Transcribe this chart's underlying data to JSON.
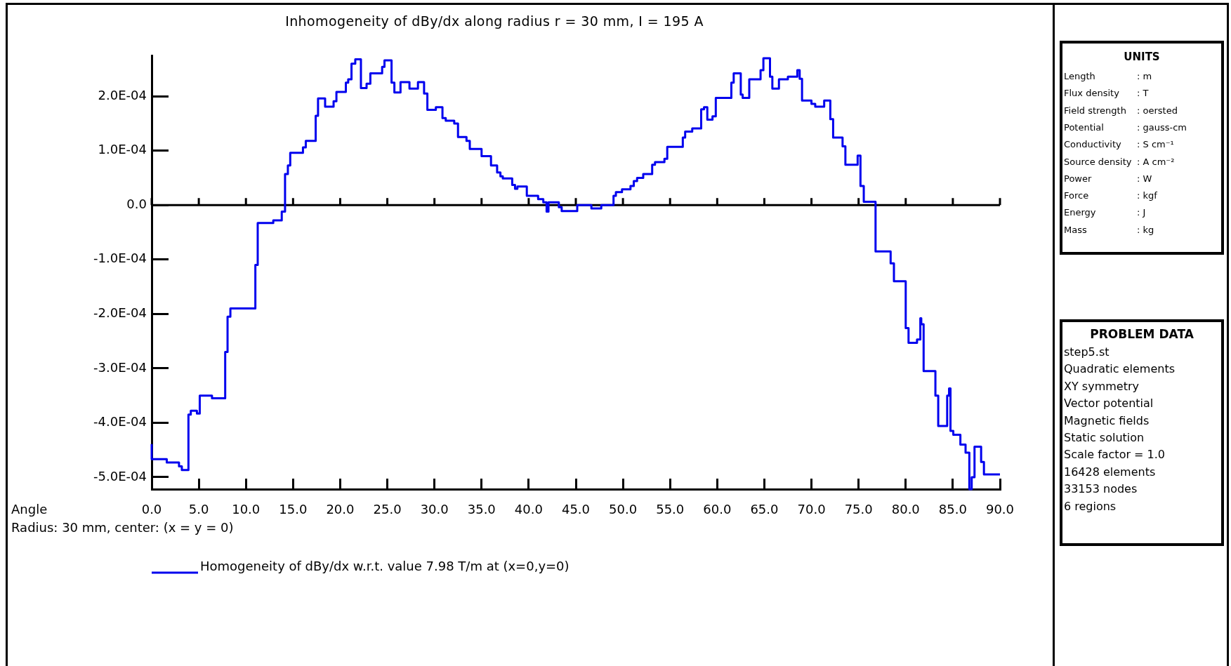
{
  "chart_data": [
    {
      "type": "step",
      "title": "Inhomogeneity of dBy/dx along radius r = 30 mm, I = 195 A",
      "xlabel": "Angle",
      "annotations": [
        "Radius: 30 mm, center: (x = y = 0)"
      ],
      "x": [
        0,
        0,
        1.6,
        2.9,
        3.2,
        3.9,
        4.15,
        4.8,
        5.1,
        6.4,
        7.8,
        8.05,
        8.35,
        11.0,
        11.25,
        12.9,
        13.8,
        14.15,
        14.45,
        14.7,
        16.05,
        16.35,
        17.4,
        17.65,
        18.4,
        19.3,
        19.6,
        20.6,
        20.85,
        21.2,
        21.6,
        22.2,
        22.8,
        23.2,
        24.45,
        24.7,
        25.45,
        25.75,
        26.4,
        27.35,
        28.25,
        28.9,
        29.25,
        30.15,
        30.85,
        31.2,
        32.1,
        32.5,
        33.4,
        33.75,
        35.0,
        36.0,
        36.65,
        37.0,
        37.25,
        38.25,
        38.55,
        38.8,
        39.8,
        41.0,
        41.55,
        41.9,
        42.1,
        43.2,
        43.5,
        45.15,
        46.65,
        47.7,
        49.0,
        49.25,
        49.9,
        50.8,
        51.15,
        51.5,
        52.15,
        53.1,
        53.4,
        54.4,
        54.7,
        56.35,
        56.6,
        57.35,
        58.3,
        58.6,
        58.95,
        59.5,
        59.85,
        61.5,
        61.75,
        62.5,
        62.7,
        63.4,
        64.6,
        64.9,
        65.6,
        65.85,
        66.55,
        67.5,
        68.5,
        68.75,
        69.0,
        70.0,
        70.4,
        71.35,
        72.0,
        72.3,
        73.3,
        73.6,
        74.9,
        75.2,
        75.55,
        76.8,
        78.4,
        78.75,
        80.0,
        80.3,
        81.2,
        81.55,
        81.65,
        81.9,
        83.15,
        83.45,
        84.4,
        84.6,
        84.75,
        85.05,
        85.8,
        86.35,
        86.75,
        87.0,
        87.3,
        88.0,
        88.3,
        90
      ],
      "series": [
        {
          "name": "Homogeneity of dBy/dx w.r.t. value 7.98 T/m at (x=0,y=0)",
          "color": "#0000ee",
          "values": [
            -0.000439,
            -0.000467,
            -0.000473,
            -0.00048,
            -0.000487,
            -0.000385,
            -0.000378,
            -0.000383,
            -0.00035,
            -0.000355,
            -0.00027,
            -0.000205,
            -0.00019,
            -0.00011,
            -3.3e-05,
            -2.8e-05,
            -1.2e-05,
            5.7e-05,
            7.3e-05,
            9.6e-05,
            0.000106,
            0.000118,
            0.000164,
            0.000196,
            0.000181,
            0.000191,
            0.000208,
            0.000225,
            0.000231,
            0.00026,
            0.000268,
            0.000215,
            0.000223,
            0.000242,
            0.000254,
            0.000266,
            0.000225,
            0.000207,
            0.000226,
            0.000214,
            0.000226,
            0.000205,
            0.000175,
            0.00018,
            0.00016,
            0.000155,
            0.00015,
            0.000125,
            0.000118,
            0.000103,
            9e-05,
            7.3e-05,
            6e-05,
            5.3e-05,
            4.9e-05,
            3.7e-05,
            3e-05,
            3.4e-05,
            1.7e-05,
            1.1e-05,
            5e-06,
            -1.2e-05,
            5e-06,
            -4e-06,
            -1.1e-05,
            0,
            -6e-06,
            0,
            1.7e-05,
            2.4e-05,
            2.9e-05,
            3.5e-05,
            4.4e-05,
            5e-05,
            5.7e-05,
            7.4e-05,
            7.9e-05,
            8.5e-05,
            0.000107,
            0.000124,
            0.000135,
            0.000141,
            0.000176,
            0.00018,
            0.000157,
            0.000163,
            0.000197,
            0.000225,
            0.000242,
            0.000203,
            0.000197,
            0.000231,
            0.000248,
            0.00027,
            0.000236,
            0.000214,
            0.000231,
            0.000236,
            0.000248,
            0.000232,
            0.000192,
            0.000186,
            0.000181,
            0.000192,
            0.000158,
            0.000124,
            0.000108,
            7.4e-05,
            9.1e-05,
            3.5e-05,
            6e-06,
            -8.5e-05,
            -0.000107,
            -0.00014,
            -0.000226,
            -0.000253,
            -0.000247,
            -0.000208,
            -0.000219,
            -0.000305,
            -0.00035,
            -0.000406,
            -0.00035,
            -0.000337,
            -0.000415,
            -0.000422,
            -0.00044,
            -0.000455,
            -0.000522,
            -0.0005,
            -0.000444,
            -0.000472,
            -0.000495,
            -0.000495
          ]
        }
      ],
      "xlim": [
        0,
        90
      ],
      "ylim": [
        -0.000522,
        0.000275
      ],
      "xticks": [
        {
          "value": 0,
          "label": "0.0"
        },
        {
          "value": 5,
          "label": "5.0"
        },
        {
          "value": 10,
          "label": "10.0"
        },
        {
          "value": 15,
          "label": "15.0"
        },
        {
          "value": 20,
          "label": "20.0"
        },
        {
          "value": 25,
          "label": "25.0"
        },
        {
          "value": 30,
          "label": "30.0"
        },
        {
          "value": 35,
          "label": "35.0"
        },
        {
          "value": 40,
          "label": "40.0"
        },
        {
          "value": 45,
          "label": "45.0"
        },
        {
          "value": 50,
          "label": "50.0"
        },
        {
          "value": 55,
          "label": "55.0"
        },
        {
          "value": 60,
          "label": "60.0"
        },
        {
          "value": 65,
          "label": "65.0"
        },
        {
          "value": 70,
          "label": "70.0"
        },
        {
          "value": 75,
          "label": "75.0"
        },
        {
          "value": 80,
          "label": "80.0"
        },
        {
          "value": 85,
          "label": "85.0"
        },
        {
          "value": 90,
          "label": "90.0"
        }
      ],
      "yticks": [
        {
          "value": -0.0005,
          "label": "-5.0E-04"
        },
        {
          "value": -0.0004,
          "label": "-4.0E-04"
        },
        {
          "value": -0.0003,
          "label": "-3.0E-04"
        },
        {
          "value": -0.0002,
          "label": "-2.0E-04"
        },
        {
          "value": -0.0001,
          "label": "-1.0E-04"
        },
        {
          "value": 0,
          "label": "0.0"
        },
        {
          "value": 0.0001,
          "label": "1.0E-04"
        },
        {
          "value": 0.0002,
          "label": "2.0E-04"
        }
      ],
      "ref_lines": [
        {
          "axis": "y",
          "value": 0,
          "color": "#000000"
        }
      ],
      "legend": "bottom left"
    },
    {
      "type": "other",
      "title": "UNITS",
      "annotations": [
        "Length : m",
        "Flux density : T",
        "Field strength : oersted",
        "Potential : gauss-cm",
        "Conductivity : S cm⁻¹",
        "Source density : A cm⁻²",
        "Power : W",
        "Force : kgf",
        "Energy : J",
        "Mass : kg"
      ]
    },
    {
      "type": "other",
      "title": "PROBLEM DATA",
      "annotations": [
        "step5.st",
        "Quadratic elements",
        "XY symmetry",
        "Vector potential",
        "Magnetic fields",
        "Static solution",
        "Scale factor = 1.0",
        "16428 elements",
        "33153 nodes",
        "6 regions"
      ]
    }
  ]
}
